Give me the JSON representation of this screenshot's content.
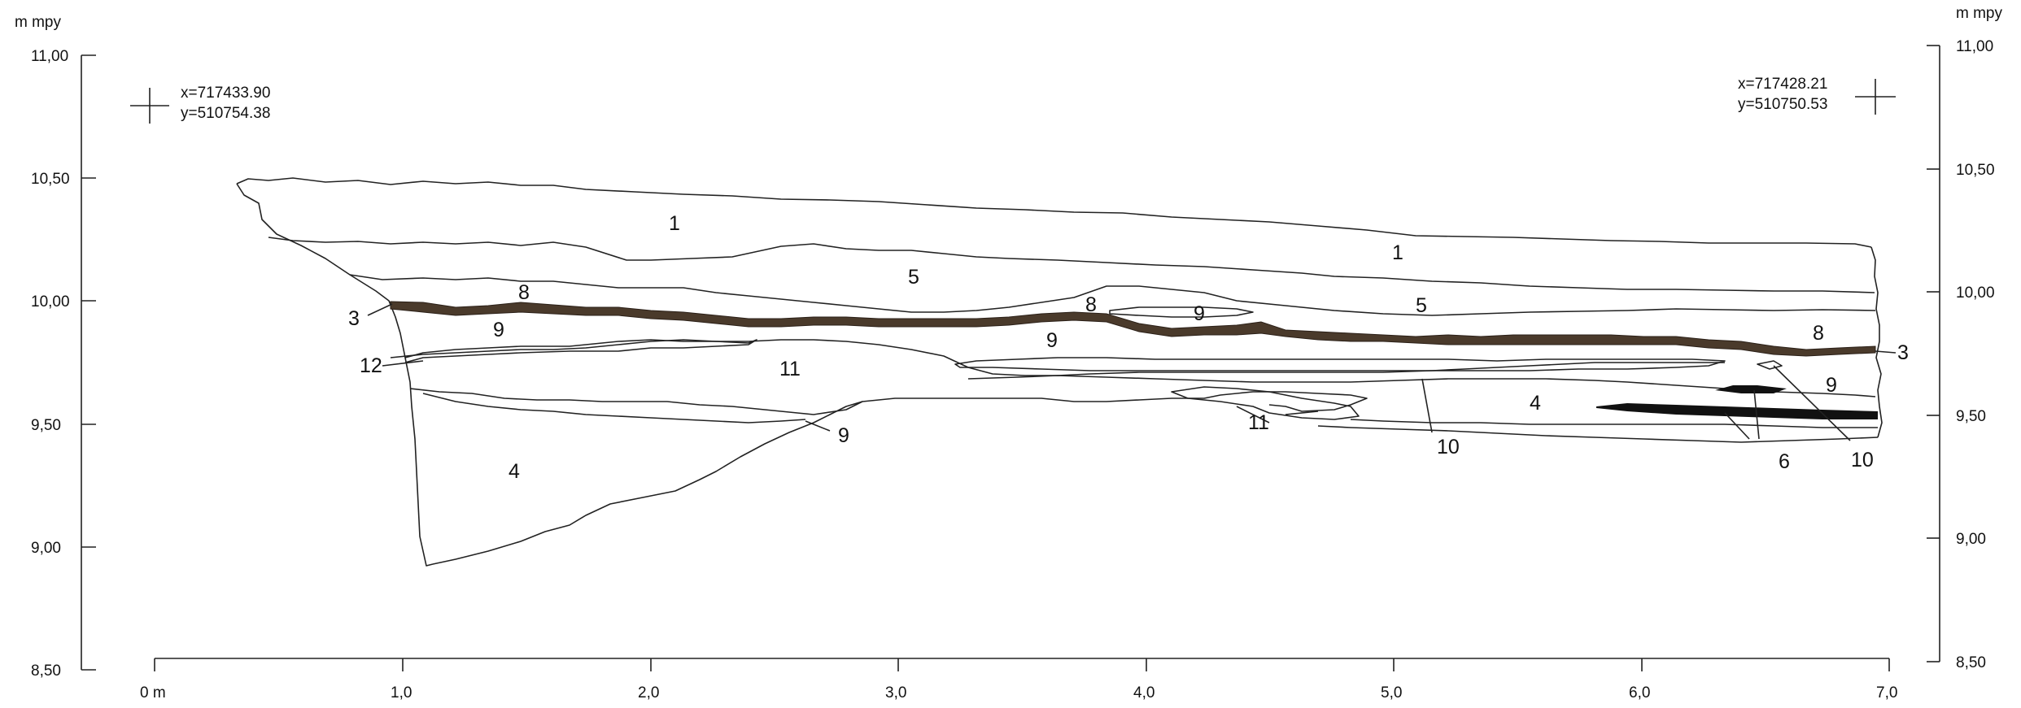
{
  "axes": {
    "left_unit": "m mpy",
    "right_unit": "m mpy",
    "left_ticks": [
      "11,00",
      "10,50",
      "10,00",
      "9,50",
      "9,00",
      "8,50"
    ],
    "right_ticks": [
      "11,00",
      "10,50",
      "10,00",
      "9,50",
      "9,00",
      "8,50"
    ],
    "bottom_ticks": [
      "0 m",
      "1,0",
      "2,0",
      "3,0",
      "4,0",
      "5,0",
      "6,0",
      "7,0"
    ]
  },
  "coords": {
    "left": {
      "x": "x=717433.90",
      "y": "y=510754.38"
    },
    "right": {
      "x": "x=717428.21",
      "y": "y=510750.53"
    }
  },
  "layers": {
    "l1a": "1",
    "l1b": "1",
    "l5a": "5",
    "l5b": "5",
    "l8a": "8",
    "l8b": "8",
    "l8c": "8",
    "l3a": "3",
    "l3b": "3",
    "l9a": "9",
    "l9b": "9",
    "l9c": "9",
    "l9d": "9",
    "l9e": "9",
    "l12": "12",
    "l11a": "11",
    "l11b": "11",
    "l4a": "4",
    "l4b": "4",
    "l10a": "10",
    "l10b": "10",
    "l6": "6"
  },
  "colors": {
    "brown_layer": "#4a3a2b",
    "black_layer": "#111111",
    "line": "#222222"
  }
}
